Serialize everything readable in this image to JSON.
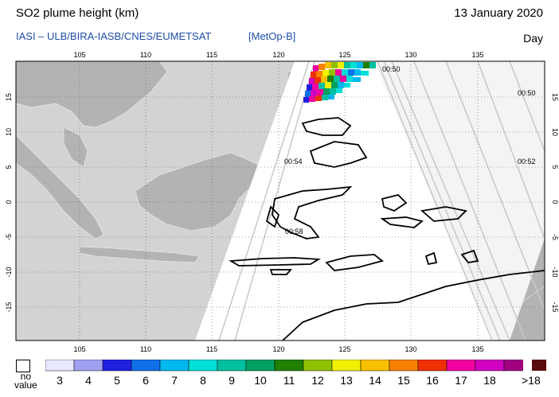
{
  "header": {
    "title": "SO2 plume height (km)",
    "date": "13 January 2020",
    "source": "IASI  –  ULB/BIRA-IASB/CNES/EUMETSAT",
    "satellite": "[MetOp-B]",
    "mode": "Day"
  },
  "map": {
    "lon_labels": [
      "105",
      "110",
      "115",
      "120",
      "125",
      "130",
      "135"
    ],
    "lat_labels": [
      "15",
      "10",
      "5",
      "0",
      "-5",
      "-10",
      "-15"
    ],
    "overpass_times": [
      "00:50",
      "00:50",
      "00:54",
      "00:52",
      "00:58"
    ],
    "colors": {
      "land": "#b3b3b3",
      "ocean": "#d3d3d3",
      "swath": "#ffffff",
      "coast": "#000000"
    }
  },
  "legend": {
    "no_value": "no\nvalue",
    "labels": [
      "3",
      "4",
      "5",
      "6",
      "7",
      "8",
      "9",
      "10",
      "11",
      "12",
      "13",
      "14",
      "15",
      "16",
      "17",
      "18"
    ],
    "last_label": ">18",
    "colors": [
      "#e8e8ff",
      "#a0a0f0",
      "#2020e0",
      "#1070e8",
      "#00b8f0",
      "#00e0d8",
      "#00c0a0",
      "#00a060",
      "#208000",
      "#90c000",
      "#f0f000",
      "#f8c000",
      "#f88000",
      "#f03000",
      "#f000a0",
      "#d000c0",
      "#a00080",
      "#5a0c0c"
    ]
  }
}
